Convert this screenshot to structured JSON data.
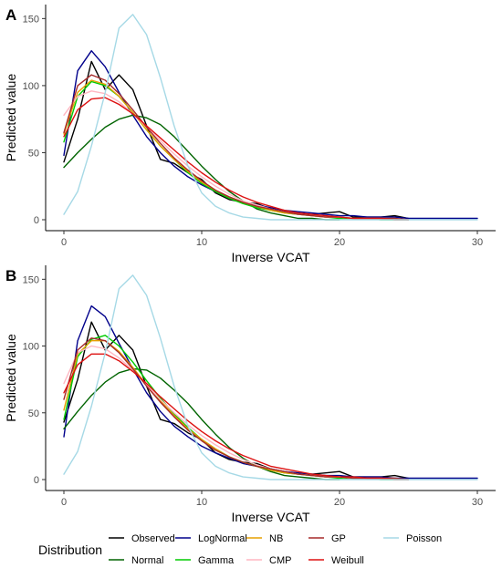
{
  "chart_data": [
    {
      "type": "line",
      "panel_label": "A",
      "xlabel": "Inverse VCAT",
      "ylabel": "Predicted value",
      "xlim": [
        0,
        30
      ],
      "ylim": [
        0,
        155
      ],
      "xticks": [
        0,
        10,
        20,
        30
      ],
      "yticks": [
        0,
        50,
        100,
        150
      ],
      "grid": false,
      "series": [
        {
          "name": "Observed",
          "color": "#000000",
          "x": [
            0,
            1,
            2,
            3,
            4,
            5,
            6,
            7,
            8,
            9,
            10,
            11,
            12,
            13,
            14,
            15,
            16,
            17,
            18,
            19,
            20,
            21,
            22,
            23,
            24,
            25
          ],
          "y": [
            43,
            75,
            118,
            97,
            108,
            97,
            70,
            45,
            42,
            35,
            30,
            20,
            15,
            13,
            12,
            8,
            6,
            4,
            4,
            5,
            6,
            2,
            2,
            2,
            3,
            1
          ]
        },
        {
          "name": "LogNormal",
          "color": "#00008b",
          "x": [
            0,
            1,
            2,
            3,
            4,
            5,
            6,
            7,
            8,
            9,
            10,
            11,
            12,
            13,
            14,
            15,
            16,
            17,
            18,
            19,
            20,
            21,
            22,
            23,
            24,
            25,
            26,
            27,
            28,
            29,
            30
          ],
          "y": [
            48,
            111,
            126,
            114,
            95,
            78,
            62,
            50,
            40,
            32,
            26,
            21,
            17,
            13,
            11,
            9,
            7,
            6,
            5,
            4,
            3,
            3,
            2,
            2,
            2,
            1,
            1,
            1,
            1,
            1,
            1
          ]
        },
        {
          "name": "Normal",
          "color": "#006400",
          "x": [
            0,
            1,
            2,
            3,
            4,
            5,
            6,
            7,
            8,
            9,
            10,
            11,
            12,
            13,
            14,
            15,
            16,
            17,
            18,
            19,
            20
          ],
          "y": [
            39,
            50,
            60,
            69,
            75,
            78,
            76,
            71,
            62,
            51,
            40,
            30,
            21,
            14,
            8,
            5,
            3,
            1,
            1,
            0,
            0
          ]
        },
        {
          "name": "Gamma",
          "color": "#00cc00",
          "x": [
            0,
            1,
            2,
            3,
            4,
            5,
            6,
            7,
            8,
            9,
            10,
            11,
            12,
            13,
            14,
            15,
            16,
            17,
            18,
            19,
            20,
            21,
            22,
            23,
            24,
            25
          ],
          "y": [
            58,
            92,
            103,
            100,
            92,
            80,
            67,
            55,
            45,
            35,
            27,
            21,
            16,
            12,
            9,
            7,
            5,
            4,
            3,
            2,
            1,
            1,
            1,
            0,
            0,
            0
          ]
        },
        {
          "name": "NB",
          "color": "#e6a000",
          "x": [
            0,
            1,
            2,
            3,
            4,
            5,
            6,
            7,
            8,
            9,
            10,
            11,
            12,
            13,
            14,
            15,
            16,
            17,
            18,
            19,
            20,
            21,
            22,
            23,
            24,
            25
          ],
          "y": [
            64,
            95,
            104,
            101,
            92,
            80,
            67,
            55,
            45,
            36,
            28,
            22,
            17,
            13,
            10,
            7,
            5,
            4,
            3,
            2,
            2,
            1,
            1,
            1,
            0,
            0
          ]
        },
        {
          "name": "CMP",
          "color": "#ffb6c1",
          "x": [
            0,
            1,
            2,
            3,
            4,
            5,
            6,
            7,
            8,
            9,
            10,
            11,
            12,
            13,
            14,
            15,
            16,
            17,
            18,
            19,
            20,
            21,
            22,
            23,
            24,
            25
          ],
          "y": [
            78,
            92,
            96,
            94,
            88,
            79,
            69,
            59,
            49,
            40,
            32,
            25,
            19,
            14,
            11,
            8,
            6,
            4,
            3,
            2,
            2,
            1,
            1,
            1,
            0,
            0
          ]
        },
        {
          "name": "GP",
          "color": "#a52a2a",
          "x": [
            0,
            1,
            2,
            3,
            4,
            5,
            6,
            7,
            8,
            9,
            10,
            11,
            12,
            13,
            14,
            15,
            16,
            17,
            18,
            19,
            20,
            21,
            22,
            23,
            24,
            25
          ],
          "y": [
            65,
            100,
            108,
            104,
            94,
            82,
            69,
            57,
            46,
            37,
            29,
            22,
            17,
            13,
            10,
            8,
            6,
            4,
            3,
            2,
            2,
            1,
            1,
            1,
            1,
            0
          ]
        },
        {
          "name": "Weibull",
          "color": "#dd1111",
          "x": [
            0,
            1,
            2,
            3,
            4,
            5,
            6,
            7,
            8,
            9,
            10,
            11,
            12,
            13,
            14,
            15,
            16,
            17,
            18,
            19,
            20,
            21,
            22,
            23,
            24,
            25
          ],
          "y": [
            62,
            82,
            90,
            91,
            86,
            79,
            70,
            61,
            52,
            43,
            35,
            28,
            22,
            17,
            13,
            10,
            7,
            5,
            4,
            3,
            2,
            1,
            1,
            1,
            0,
            0
          ]
        },
        {
          "name": "Poisson",
          "color": "#a6d9e6",
          "x": [
            0,
            1,
            2,
            3,
            4,
            5,
            6,
            7,
            8,
            9,
            10,
            11,
            12,
            13,
            14,
            15,
            16,
            17,
            18,
            19,
            20,
            21,
            22,
            23,
            24,
            25,
            26,
            27,
            28,
            29,
            30
          ],
          "y": [
            4,
            21,
            55,
            95,
            143,
            153,
            138,
            106,
            70,
            40,
            20,
            10,
            5,
            2,
            1,
            0,
            0,
            0,
            0,
            0,
            0,
            0,
            0,
            0,
            0,
            0,
            0,
            0,
            0,
            0,
            0
          ]
        }
      ]
    },
    {
      "type": "line",
      "panel_label": "B",
      "xlabel": "Inverse VCAT",
      "ylabel": "Predicted value",
      "xlim": [
        0,
        30
      ],
      "ylim": [
        0,
        155
      ],
      "xticks": [
        0,
        10,
        20,
        30
      ],
      "yticks": [
        0,
        50,
        100,
        150
      ],
      "grid": false,
      "series": [
        {
          "name": "Observed",
          "color": "#000000",
          "x": [
            0,
            1,
            2,
            3,
            4,
            5,
            6,
            7,
            8,
            9,
            10,
            11,
            12,
            13,
            14,
            15,
            16,
            17,
            18,
            19,
            20,
            21,
            22,
            23,
            24,
            25
          ],
          "y": [
            43,
            75,
            118,
            97,
            108,
            97,
            70,
            45,
            42,
            35,
            30,
            20,
            15,
            13,
            12,
            8,
            6,
            4,
            4,
            5,
            6,
            2,
            2,
            2,
            3,
            1
          ]
        },
        {
          "name": "LogNormal",
          "color": "#00008b",
          "x": [
            0,
            1,
            2,
            3,
            4,
            5,
            6,
            7,
            8,
            9,
            10,
            11,
            12,
            13,
            14,
            15,
            16,
            17,
            18,
            19,
            20,
            21,
            22,
            23,
            24,
            25,
            26,
            27,
            28,
            29,
            30
          ],
          "y": [
            32,
            104,
            130,
            122,
            102,
            83,
            65,
            51,
            40,
            32,
            25,
            20,
            16,
            12,
            10,
            8,
            6,
            5,
            4,
            3,
            3,
            2,
            2,
            2,
            1,
            1,
            1,
            1,
            1,
            1,
            1
          ]
        },
        {
          "name": "Normal",
          "color": "#006400",
          "x": [
            0,
            1,
            2,
            3,
            4,
            5,
            6,
            7,
            8,
            9,
            10,
            11,
            12,
            13,
            14,
            15,
            16,
            17,
            18,
            19,
            20
          ],
          "y": [
            38,
            51,
            63,
            73,
            80,
            83,
            82,
            76,
            67,
            57,
            45,
            34,
            24,
            16,
            10,
            6,
            3,
            2,
            1,
            0,
            0
          ]
        },
        {
          "name": "Gamma",
          "color": "#00cc00",
          "x": [
            0,
            1,
            2,
            3,
            4,
            5,
            6,
            7,
            8,
            9,
            10,
            11,
            12,
            13,
            14,
            15,
            16,
            17,
            18,
            19,
            20,
            21,
            22,
            23,
            24,
            25
          ],
          "y": [
            45,
            92,
            105,
            108,
            100,
            88,
            74,
            61,
            49,
            39,
            30,
            23,
            17,
            13,
            10,
            7,
            5,
            4,
            3,
            2,
            1,
            1,
            1,
            0,
            0,
            0
          ]
        },
        {
          "name": "NB",
          "color": "#e6a000",
          "x": [
            0,
            1,
            2,
            3,
            4,
            5,
            6,
            7,
            8,
            9,
            10,
            11,
            12,
            13,
            14,
            15,
            16,
            17,
            18,
            19,
            20,
            21,
            22,
            23,
            24,
            25
          ],
          "y": [
            52,
            94,
            104,
            104,
            96,
            84,
            71,
            59,
            48,
            38,
            30,
            23,
            17,
            13,
            10,
            7,
            5,
            4,
            3,
            2,
            2,
            1,
            1,
            1,
            0,
            0
          ]
        },
        {
          "name": "CMP",
          "color": "#ffb6c1",
          "x": [
            0,
            1,
            2,
            3,
            4,
            5,
            6,
            7,
            8,
            9,
            10,
            11,
            12,
            13,
            14,
            15,
            16,
            17,
            18,
            19,
            20,
            21,
            22,
            23,
            24,
            25
          ],
          "y": [
            72,
            95,
            100,
            98,
            91,
            82,
            71,
            60,
            50,
            41,
            33,
            26,
            20,
            15,
            11,
            8,
            6,
            4,
            3,
            2,
            2,
            1,
            1,
            1,
            0,
            0
          ]
        },
        {
          "name": "GP",
          "color": "#a52a2a",
          "x": [
            0,
            1,
            2,
            3,
            4,
            5,
            6,
            7,
            8,
            9,
            10,
            11,
            12,
            13,
            14,
            15,
            16,
            17,
            18,
            19,
            20,
            21,
            22,
            23,
            24,
            25
          ],
          "y": [
            60,
            97,
            106,
            104,
            95,
            83,
            70,
            58,
            47,
            37,
            29,
            22,
            17,
            13,
            10,
            8,
            6,
            4,
            3,
            2,
            2,
            1,
            1,
            1,
            1,
            0
          ]
        },
        {
          "name": "Weibull",
          "color": "#dd1111",
          "x": [
            0,
            1,
            2,
            3,
            4,
            5,
            6,
            7,
            8,
            9,
            10,
            11,
            12,
            13,
            14,
            15,
            16,
            17,
            18,
            19,
            20,
            21,
            22,
            23,
            24,
            25
          ],
          "y": [
            65,
            86,
            94,
            94,
            89,
            81,
            72,
            62,
            53,
            44,
            36,
            29,
            23,
            18,
            14,
            10,
            8,
            6,
            4,
            3,
            2,
            2,
            1,
            1,
            0,
            0
          ]
        },
        {
          "name": "Poisson",
          "color": "#a6d9e6",
          "x": [
            0,
            1,
            2,
            3,
            4,
            5,
            6,
            7,
            8,
            9,
            10,
            11,
            12,
            13,
            14,
            15,
            16,
            17,
            18,
            19,
            20,
            21,
            22,
            23,
            24,
            25,
            26,
            27,
            28,
            29,
            30
          ],
          "y": [
            4,
            21,
            55,
            95,
            143,
            153,
            138,
            106,
            70,
            40,
            20,
            10,
            5,
            2,
            1,
            0,
            0,
            0,
            0,
            0,
            0,
            0,
            0,
            0,
            0,
            0,
            0,
            0,
            0,
            0,
            0
          ]
        }
      ]
    }
  ],
  "legend": {
    "title": "Distribution",
    "placement": "bottom",
    "items": [
      {
        "name": "Observed",
        "color": "#000000"
      },
      {
        "name": "LogNormal",
        "color": "#00008b"
      },
      {
        "name": "NB",
        "color": "#e6a000"
      },
      {
        "name": "GP",
        "color": "#a52a2a"
      },
      {
        "name": "Poisson",
        "color": "#a6d9e6"
      },
      {
        "name": "Normal",
        "color": "#006400"
      },
      {
        "name": "Gamma",
        "color": "#00cc00"
      },
      {
        "name": "CMP",
        "color": "#ffb6c1"
      },
      {
        "name": "Weibull",
        "color": "#dd1111"
      }
    ]
  }
}
